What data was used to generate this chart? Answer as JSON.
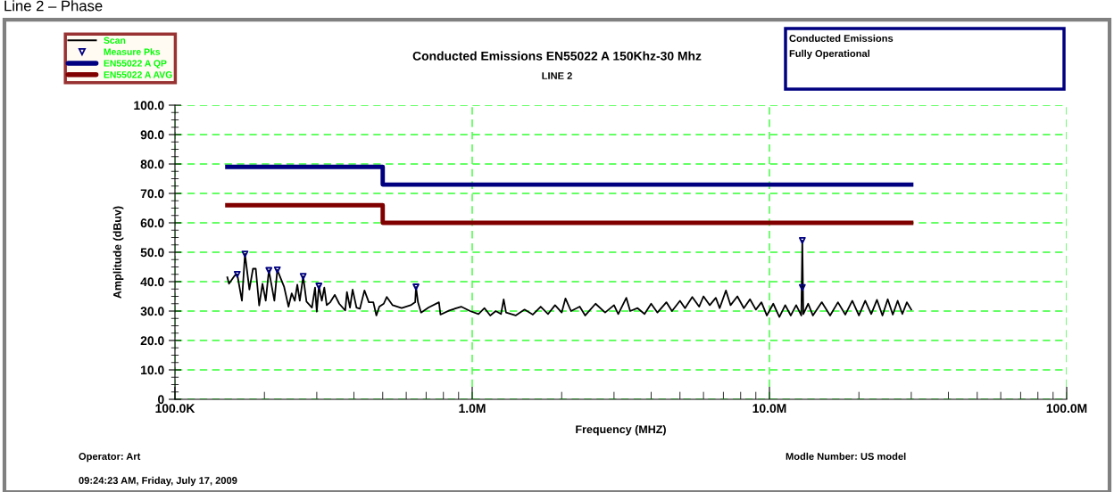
{
  "chart_data": {
    "type": "line",
    "title": "Conducted Emissions EN55022 A 150Khz-30 Mhz",
    "subtitle": "LINE 2",
    "xlabel": "Frequency (MHZ)",
    "ylabel": "Amplitude (dBuv)",
    "log": "x",
    "xlim": [
      100000,
      100000000
    ],
    "xticks": [
      {
        "value": 100000,
        "label": "100.0K"
      },
      {
        "value": 1000000,
        "label": "1.0M"
      },
      {
        "value": 10000000,
        "label": "10.0M"
      },
      {
        "value": 100000000,
        "label": "100.0M"
      }
    ],
    "ylim": [
      0,
      100
    ],
    "yticks": [
      0,
      {
        "value": 10,
        "label": "10.0"
      },
      {
        "value": 20,
        "label": "20.0"
      },
      {
        "value": 30,
        "label": "30.0"
      },
      {
        "value": 40,
        "label": "40.0"
      },
      {
        "value": 50,
        "label": "50.0"
      },
      {
        "value": 60,
        "label": "60.0"
      },
      {
        "value": 70,
        "label": "70.0"
      },
      {
        "value": 80,
        "label": "80.0"
      },
      {
        "value": 90,
        "label": "90.0"
      },
      {
        "value": 100,
        "label": "100.0"
      }
    ],
    "grid": true,
    "legend": "top left",
    "series": [
      {
        "name": "Scan",
        "color": "#000000",
        "x": [
          150000,
          152000,
          159000,
          162000,
          168000,
          172000,
          178000,
          183000,
          187000,
          192000,
          197000,
          202000,
          207000,
          216000,
          221000,
          233000,
          241000,
          247000,
          253000,
          258000,
          263000,
          270000,
          277000,
          289000,
          296000,
          300000,
          305000,
          312000,
          318000,
          324000,
          333000,
          345000,
          357000,
          374000,
          379000,
          388000,
          396000,
          408000,
          419000,
          434000,
          449000,
          465000,
          476000,
          487000,
          504000,
          516000,
          540000,
          579000,
          621000,
          643000,
          647000,
          657000,
          673000,
          713000,
          773000,
          782000,
          837000,
          918000,
          984000,
          1050000,
          1100000,
          1150000,
          1200000,
          1250000,
          1276000,
          1300000,
          1400000,
          1500000,
          1600000,
          1700000,
          1800000,
          1900000,
          2000000,
          2060000,
          2150000,
          2300000,
          2400000,
          2600000,
          2800000,
          3000000,
          3100000,
          3300000,
          3400000,
          3600000,
          3800000,
          4000000,
          4200000,
          4500000,
          4700000,
          5000000,
          5200000,
          5500000,
          5800000,
          6000000,
          6300000,
          6600000,
          6800000,
          7140000,
          7400000,
          7800000,
          8200000,
          8600000,
          9000000,
          9400000,
          9800000,
          10300000,
          10800000,
          11300000,
          11800000,
          12300000,
          12800000,
          12900000,
          13000000,
          13500000,
          14000000,
          15000000,
          16000000,
          17000000,
          18000000,
          19000000,
          20000000,
          21000000,
          22000000,
          23000000,
          24000000,
          25000000,
          26000000,
          27000000,
          28000000,
          29000000,
          30000000
        ],
        "values": [
          41.5,
          39.3,
          42.1,
          42.5,
          33.5,
          49.4,
          37.3,
          44.4,
          44.4,
          31.9,
          39.3,
          33.5,
          43.8,
          33.5,
          44.0,
          38.2,
          31.5,
          36.0,
          33.5,
          39.0,
          33.5,
          41.8,
          33.2,
          31.2,
          38.0,
          29.8,
          38.5,
          33.5,
          38.0,
          32.0,
          33.0,
          35.5,
          32.5,
          30.2,
          36.5,
          31.2,
          37.3,
          31.2,
          30.8,
          37.0,
          33.0,
          33.0,
          28.5,
          31.5,
          32.5,
          34.8,
          32.0,
          31.0,
          32.0,
          33.0,
          38.2,
          33.0,
          29.5,
          31.2,
          33.0,
          28.8,
          30.2,
          31.5,
          30.0,
          29.0,
          31.0,
          28.5,
          30.0,
          29.0,
          34.0,
          29.5,
          28.5,
          30.5,
          28.8,
          31.5,
          29.0,
          32.0,
          29.5,
          34.3,
          30.0,
          31.5,
          28.5,
          32.5,
          29.5,
          32.0,
          29.0,
          34.5,
          30.0,
          31.0,
          29.0,
          32.5,
          29.5,
          33.0,
          30.0,
          33.5,
          31.0,
          34.8,
          31.5,
          35.0,
          32.0,
          34.5,
          31.0,
          37.0,
          32.0,
          35.0,
          31.0,
          34.0,
          30.5,
          33.0,
          28.5,
          32.5,
          28.0,
          32.0,
          28.5,
          32.0,
          28.5,
          54.0,
          29.0,
          32.5,
          28.5,
          33.0,
          28.5,
          33.0,
          28.8,
          33.5,
          28.5,
          33.5,
          29.0,
          33.8,
          28.5,
          34.0,
          28.8,
          33.5,
          29.0,
          33.0,
          30.5
        ]
      },
      {
        "name": "Measure Pks",
        "type": "scatter",
        "color": "#000080",
        "marker": "triangle",
        "x": [
          162000,
          172000,
          207000,
          221000,
          270000,
          305000,
          647000,
          12900000,
          12900000
        ],
        "values": [
          42.5,
          49.4,
          43.8,
          44.0,
          41.8,
          38.5,
          38.2,
          54.0,
          38.0
        ]
      },
      {
        "name": "EN55022 A QP",
        "type": "step",
        "color": "#000080",
        "x": [
          150000,
          500000,
          30000000
        ],
        "values": [
          79,
          73,
          73
        ]
      },
      {
        "name": "EN55022 A AVG",
        "type": "step",
        "color": "#800000",
        "x": [
          150000,
          500000,
          30000000
        ],
        "values": [
          66,
          60,
          60
        ]
      }
    ],
    "annotations": [
      "Line 2 – Phase",
      "Conducted Emissions",
      "Fully Operational",
      "Operator: Art",
      "09:24:23 AM, Friday, July 17, 2009",
      "Modle Number: US model"
    ]
  }
}
